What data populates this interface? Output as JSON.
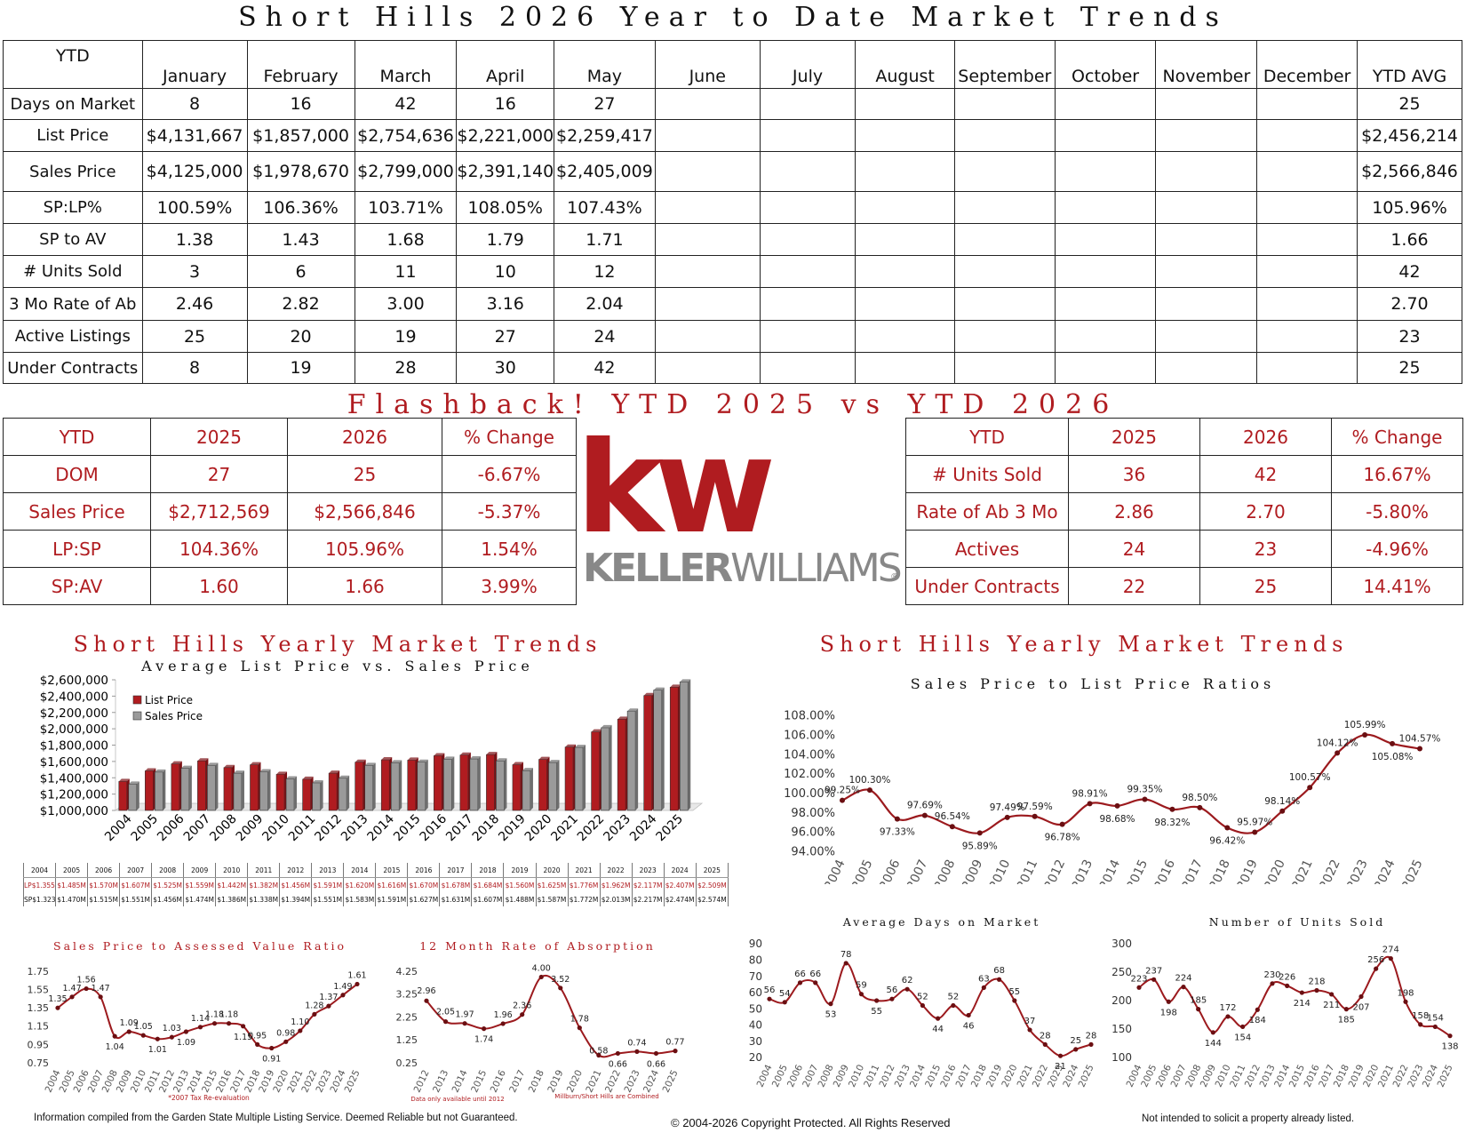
{
  "header": {
    "title": "Short Hills 2026 Year to Date Market Trends"
  },
  "ytd_table": {
    "corner": "YTD",
    "columns": [
      "January",
      "February",
      "March",
      "April",
      "May",
      "June",
      "July",
      "August",
      "September",
      "October",
      "November",
      "December",
      "YTD AVG"
    ],
    "rows": [
      {
        "label": "Days on Market",
        "values": [
          "8",
          "16",
          "42",
          "16",
          "27",
          "",
          "",
          "",
          "",
          "",
          "",
          "",
          "25"
        ]
      },
      {
        "label": "List Price",
        "values": [
          "$4,131,667",
          "$1,857,000",
          "$2,754,636",
          "$2,221,000",
          "$2,259,417",
          "",
          "",
          "",
          "",
          "",
          "",
          "",
          "$2,456,214"
        ]
      },
      {
        "label": "Sales Price",
        "values": [
          "$4,125,000",
          "$1,978,670",
          "$2,799,000",
          "$2,391,140",
          "$2,405,009",
          "",
          "",
          "",
          "",
          "",
          "",
          "",
          "$2,566,846"
        ]
      },
      {
        "label": "SP:LP%",
        "values": [
          "100.59%",
          "106.36%",
          "103.71%",
          "108.05%",
          "107.43%",
          "",
          "",
          "",
          "",
          "",
          "",
          "",
          "105.96%"
        ]
      },
      {
        "label": "SP to AV",
        "values": [
          "1.38",
          "1.43",
          "1.68",
          "1.79",
          "1.71",
          "",
          "",
          "",
          "",
          "",
          "",
          "",
          "1.66"
        ]
      },
      {
        "label": "# Units Sold",
        "values": [
          "3",
          "6",
          "11",
          "10",
          "12",
          "",
          "",
          "",
          "",
          "",
          "",
          "",
          "42"
        ]
      },
      {
        "label": "3 Mo Rate of Ab",
        "values": [
          "2.46",
          "2.82",
          "3.00",
          "3.16",
          "2.04",
          "",
          "",
          "",
          "",
          "",
          "",
          "",
          "2.70"
        ]
      },
      {
        "label": "Active Listings",
        "values": [
          "25",
          "20",
          "19",
          "27",
          "24",
          "",
          "",
          "",
          "",
          "",
          "",
          "",
          "23"
        ]
      },
      {
        "label": "Under Contracts",
        "values": [
          "8",
          "19",
          "28",
          "30",
          "42",
          "",
          "",
          "",
          "",
          "",
          "",
          "",
          "25"
        ]
      }
    ]
  },
  "flashback": {
    "title": "Flashback!  YTD 2025 vs YTD 2026",
    "left": {
      "headers": [
        "YTD",
        "2025",
        "2026",
        "% Change"
      ],
      "rows": [
        [
          "DOM",
          "27",
          "25",
          "-6.67%"
        ],
        [
          "Sales Price",
          "$2,712,569",
          "$2,566,846",
          "-5.37%"
        ],
        [
          "LP:SP",
          "104.36%",
          "105.96%",
          "1.54%"
        ],
        [
          "SP:AV",
          "1.60",
          "1.66",
          "3.99%"
        ]
      ]
    },
    "right": {
      "headers": [
        "YTD",
        "2025",
        "2026",
        "% Change"
      ],
      "rows": [
        [
          "# Units Sold",
          "36",
          "42",
          "16.67%"
        ],
        [
          "Rate of Ab 3 Mo",
          "2.86",
          "2.70",
          "-5.80%"
        ],
        [
          "Actives",
          "24",
          "23",
          "-4.96%"
        ],
        [
          "Under Contracts",
          "22",
          "25",
          "14.41%"
        ]
      ]
    }
  },
  "logo": {
    "mark": "kw",
    "wordmark_a": "KELLER",
    "wordmark_b": "WILLIAMS",
    "reg": "®",
    "color": "#b01c20"
  },
  "section_left": {
    "title": "Short Hills Yearly Market Trends",
    "subtitle": "Average List Price vs. Sales Price"
  },
  "section_right": {
    "title": "Short Hills Yearly Market Trends",
    "subtitle": "Sales Price to List Price Ratios"
  },
  "colors": {
    "red": "#b01c20",
    "gray": "#9a9a9a",
    "dark": "#111111"
  },
  "price_table": {
    "years": [
      "2004",
      "2005",
      "2006",
      "2007",
      "2008",
      "2009",
      "2010",
      "2011",
      "2012",
      "2013",
      "2014",
      "2015",
      "2016",
      "2017",
      "2018",
      "2019",
      "2020",
      "2021",
      "2022",
      "2023",
      "2024",
      "2025"
    ],
    "lp_label": "LP",
    "sp_label": "SP",
    "lp": [
      "$1.355M",
      "$1.485M",
      "$1.570M",
      "$1.607M",
      "$1.525M",
      "$1.559M",
      "$1.442M",
      "$1.382M",
      "$1.456M",
      "$1.591M",
      "$1.620M",
      "$1.616M",
      "$1.670M",
      "$1.678M",
      "$1.684M",
      "$1.560M",
      "$1.625M",
      "$1.776M",
      "$1.962M",
      "$2.117M",
      "$2.407M",
      "$2.509M"
    ],
    "sp": [
      "$1.323M",
      "$1.470M",
      "$1.515M",
      "$1.551M",
      "$1.456M",
      "$1.474M",
      "$1.386M",
      "$1.338M",
      "$1.394M",
      "$1.551M",
      "$1.583M",
      "$1.591M",
      "$1.627M",
      "$1.631M",
      "$1.607M",
      "$1.488M",
      "$1.587M",
      "$1.772M",
      "$2.013M",
      "$2.217M",
      "$2.474M",
      "$2.574M"
    ]
  },
  "chart_data": [
    {
      "id": "price",
      "type": "bar",
      "title": "Average List Price vs. Sales Price",
      "categories": [
        "2004",
        "2005",
        "2006",
        "2007",
        "2008",
        "2009",
        "2010",
        "2011",
        "2012",
        "2013",
        "2014",
        "2015",
        "2016",
        "2017",
        "2018",
        "2019",
        "2020",
        "2021",
        "2022",
        "2023",
        "2024",
        "2025"
      ],
      "series": [
        {
          "name": "List Price",
          "color": "#b01c20",
          "values": [
            1355000,
            1485000,
            1570000,
            1607000,
            1525000,
            1559000,
            1442000,
            1382000,
            1456000,
            1591000,
            1620000,
            1616000,
            1670000,
            1678000,
            1684000,
            1560000,
            1625000,
            1776000,
            1962000,
            2117000,
            2407000,
            2509000
          ]
        },
        {
          "name": "Sales Price",
          "color": "#9a9a9a",
          "values": [
            1323000,
            1470000,
            1515000,
            1551000,
            1456000,
            1474000,
            1386000,
            1338000,
            1394000,
            1551000,
            1583000,
            1591000,
            1627000,
            1631000,
            1607000,
            1488000,
            1587000,
            1772000,
            2013000,
            2217000,
            2474000,
            2574000
          ]
        }
      ],
      "ylim": [
        1000000,
        2600000
      ],
      "yticks": [
        "$1,000,000",
        "$1,200,000",
        "$1,400,000",
        "$1,600,000",
        "$1,800,000",
        "$2,000,000",
        "$2,200,000",
        "$2,400,000",
        "$2,600,000"
      ],
      "legend": "top-left"
    },
    {
      "id": "splp",
      "type": "line",
      "title": "Sales Price to List Price Ratios",
      "x": [
        "2004",
        "2005",
        "2006",
        "2007",
        "2008",
        "2009",
        "2010",
        "2011",
        "2012",
        "2013",
        "2014",
        "2015",
        "2016",
        "2017",
        "2018",
        "2019",
        "2020",
        "2021",
        "2022",
        "2023",
        "2024",
        "2025"
      ],
      "values": [
        99.25,
        100.3,
        97.33,
        97.69,
        96.54,
        95.89,
        97.49,
        97.59,
        96.78,
        98.91,
        98.68,
        99.35,
        98.32,
        98.5,
        96.42,
        95.97,
        98.14,
        100.57,
        104.12,
        105.99,
        105.08,
        104.57
      ],
      "labels": [
        "99.25%",
        "100.30%",
        "97.33%",
        "97.69%",
        "96.54%",
        "95.89%",
        "97.49%",
        "97.59%",
        "96.78%",
        "98.91%",
        "98.68%",
        "99.35%",
        "98.32%",
        "98.50%",
        "96.42%",
        "95.97%",
        "98.14%",
        "100.57%",
        "104.12%",
        "105.99%",
        "105.08%",
        "104.57%"
      ],
      "ylim": [
        94,
        108
      ],
      "yticks": [
        "94.00%",
        "96.00%",
        "98.00%",
        "100.00%",
        "102.00%",
        "104.00%",
        "106.00%",
        "108.00%"
      ]
    },
    {
      "id": "spav",
      "type": "line",
      "title": "Sales Price to Assessed Value Ratio",
      "x": [
        "2004",
        "2005",
        "2006",
        "2007",
        "2008",
        "2009",
        "2010",
        "2011",
        "2012",
        "2013",
        "2014",
        "2015",
        "2016",
        "2017",
        "2018",
        "2019",
        "2020",
        "2021",
        "2022",
        "2023",
        "2024",
        "2025"
      ],
      "values": [
        1.35,
        1.47,
        1.56,
        1.47,
        1.04,
        1.09,
        1.05,
        1.01,
        1.03,
        1.09,
        1.14,
        1.18,
        1.18,
        1.15,
        0.95,
        0.91,
        0.98,
        1.1,
        1.28,
        1.37,
        1.49,
        1.61
      ],
      "labels": [
        "1.35",
        "1.47",
        "1.56",
        "1.47",
        "1.04",
        "1.09",
        "1.05",
        "1.01",
        "1.03",
        "1.09",
        "1.14",
        "1.18",
        "1.18",
        "1.15",
        "0.95",
        "0.91",
        "0.98",
        "1.10",
        "1.28",
        "1.37",
        "1.49",
        "1.61"
      ],
      "ylim": [
        0.75,
        1.75
      ],
      "yticks": [
        "0.75",
        "0.95",
        "1.15",
        "1.35",
        "1.55",
        "1.75"
      ],
      "note": "*2007 Tax Re-evaluation"
    },
    {
      "id": "abs",
      "type": "line",
      "title": "12 Month Rate of Absorption",
      "x": [
        "2012",
        "2013",
        "2014",
        "2015",
        "2016",
        "2017",
        "2018",
        "2019",
        "2020",
        "2021",
        "2022",
        "2023",
        "2024",
        "2025"
      ],
      "values": [
        2.96,
        2.05,
        1.97,
        1.74,
        1.96,
        2.36,
        4.0,
        3.52,
        1.78,
        0.58,
        0.66,
        0.74,
        0.66,
        0.77
      ],
      "labels": [
        "2.96",
        "2.05",
        "1.97",
        "1.74",
        "1.96",
        "2.36",
        "4.00",
        "3.52",
        "1.78",
        "0.58",
        "0.66",
        "0.74",
        "0.66",
        "0.77"
      ],
      "ylim": [
        0.25,
        4.25
      ],
      "yticks": [
        "0.25",
        "1.25",
        "2.25",
        "3.25",
        "4.25"
      ],
      "notes": [
        "Data only available until 2012",
        "Millburn/Short Hills are Combined"
      ]
    },
    {
      "id": "dom",
      "type": "line",
      "title": "Average Days on Market",
      "x": [
        "2004",
        "2005",
        "2006",
        "2007",
        "2008",
        "2009",
        "2010",
        "2011",
        "2012",
        "2013",
        "2014",
        "2015",
        "2016",
        "2017",
        "2018",
        "2019",
        "2020",
        "2021",
        "2022",
        "2023",
        "2024",
        "2025"
      ],
      "values": [
        56,
        54,
        66,
        66,
        53,
        78,
        59,
        55,
        56,
        62,
        52,
        44,
        52,
        46,
        63,
        68,
        55,
        37,
        28,
        21,
        25,
        28
      ],
      "labels": [
        "56",
        "54",
        "66",
        "66",
        "53",
        "78",
        "59",
        "55",
        "56",
        "62",
        "52",
        "44",
        "52",
        "46",
        "63",
        "68",
        "55",
        "37",
        "28",
        "21",
        "25",
        "28"
      ],
      "ylim": [
        20,
        90
      ],
      "yticks": [
        "20",
        "30",
        "40",
        "50",
        "60",
        "70",
        "80",
        "90"
      ]
    },
    {
      "id": "units",
      "type": "line",
      "title": "Number of Units Sold",
      "x": [
        "2004",
        "2005",
        "2006",
        "2007",
        "2008",
        "2009",
        "2010",
        "2011",
        "2012",
        "2013",
        "2014",
        "2015",
        "2016",
        "2017",
        "2018",
        "2019",
        "2020",
        "2021",
        "2022",
        "2023",
        "2024",
        "2025"
      ],
      "values": [
        223,
        237,
        198,
        224,
        185,
        144,
        172,
        154,
        184,
        230,
        226,
        214,
        218,
        211,
        185,
        207,
        256,
        274,
        198,
        158,
        154,
        138
      ],
      "labels": [
        "223",
        "237",
        "198",
        "224",
        "185",
        "144",
        "172",
        "154",
        "184",
        "230",
        "226",
        "214",
        "218",
        "211",
        "185",
        "207",
        "256",
        "274",
        "198",
        "158",
        "154",
        "138"
      ],
      "ylim": [
        100,
        300
      ],
      "yticks": [
        "100",
        "150",
        "200",
        "250",
        "300"
      ]
    }
  ],
  "footer": {
    "left": "Information compiled from the Garden State Multiple Listing Service.  Deemed Reliable but not Guaranteed.",
    "center": "© 2004-2026 Copyright Protected.  All Rights Reserved",
    "right": "Not intended to solicit a property already listed."
  }
}
